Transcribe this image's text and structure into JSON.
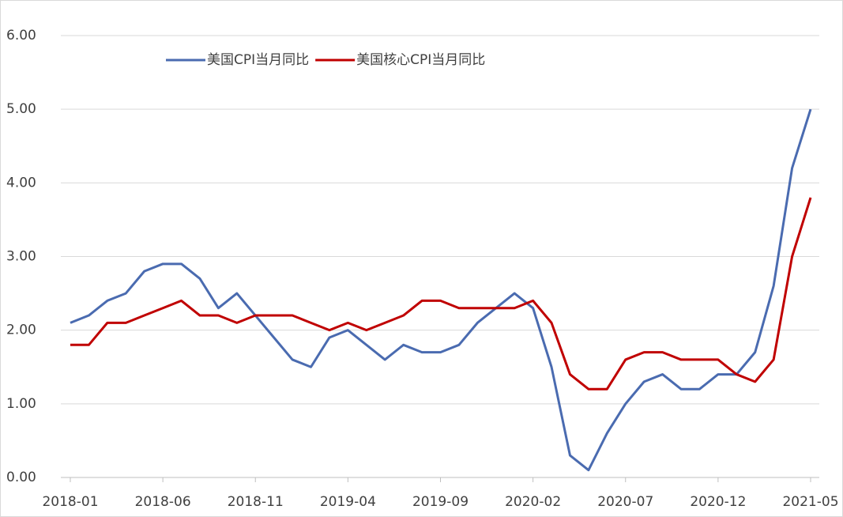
{
  "chart_data": {
    "type": "line",
    "categories": [
      "2018-01",
      null,
      null,
      null,
      null,
      "2018-06",
      null,
      null,
      null,
      null,
      "2018-11",
      null,
      null,
      null,
      null,
      "2019-04",
      null,
      null,
      null,
      null,
      "2019-09",
      null,
      null,
      null,
      null,
      "2020-02",
      null,
      null,
      null,
      null,
      "2020-07",
      null,
      null,
      null,
      null,
      "2020-12",
      null,
      null,
      null,
      null,
      "2021-05"
    ],
    "series": [
      {
        "name": "美国CPI当月同比",
        "color": "#4a6bb0",
        "values": [
          2.1,
          2.2,
          2.4,
          2.5,
          2.8,
          2.9,
          2.9,
          2.7,
          2.3,
          2.5,
          2.2,
          1.9,
          1.6,
          1.5,
          1.9,
          2.0,
          1.8,
          1.6,
          1.8,
          1.7,
          1.7,
          1.8,
          2.1,
          2.3,
          2.5,
          2.3,
          1.5,
          0.3,
          0.1,
          0.6,
          1.0,
          1.3,
          1.4,
          1.2,
          1.2,
          1.4,
          1.4,
          1.7,
          2.6,
          4.2,
          5.0
        ]
      },
      {
        "name": "美国核心CPI当月同比",
        "color": "#c00000",
        "values": [
          1.8,
          1.8,
          2.1,
          2.1,
          2.2,
          2.3,
          2.4,
          2.2,
          2.2,
          2.1,
          2.2,
          2.2,
          2.2,
          2.1,
          2.0,
          2.1,
          2.0,
          2.1,
          2.2,
          2.4,
          2.4,
          2.3,
          2.3,
          2.3,
          2.3,
          2.4,
          2.1,
          1.4,
          1.2,
          1.2,
          1.6,
          1.7,
          1.7,
          1.6,
          1.6,
          1.6,
          1.4,
          1.3,
          1.6,
          3.0,
          3.8
        ]
      }
    ],
    "ylim": [
      0,
      6
    ],
    "yticks": [
      {
        "value": 0,
        "label": "0.00"
      },
      {
        "value": 1,
        "label": "1.00"
      },
      {
        "value": 2,
        "label": "2.00"
      },
      {
        "value": 3,
        "label": "3.00"
      },
      {
        "value": 4,
        "label": "4.00"
      },
      {
        "value": 5,
        "label": "5.00"
      },
      {
        "value": 6,
        "label": "6.00"
      }
    ],
    "grid": true,
    "legend": "top"
  }
}
